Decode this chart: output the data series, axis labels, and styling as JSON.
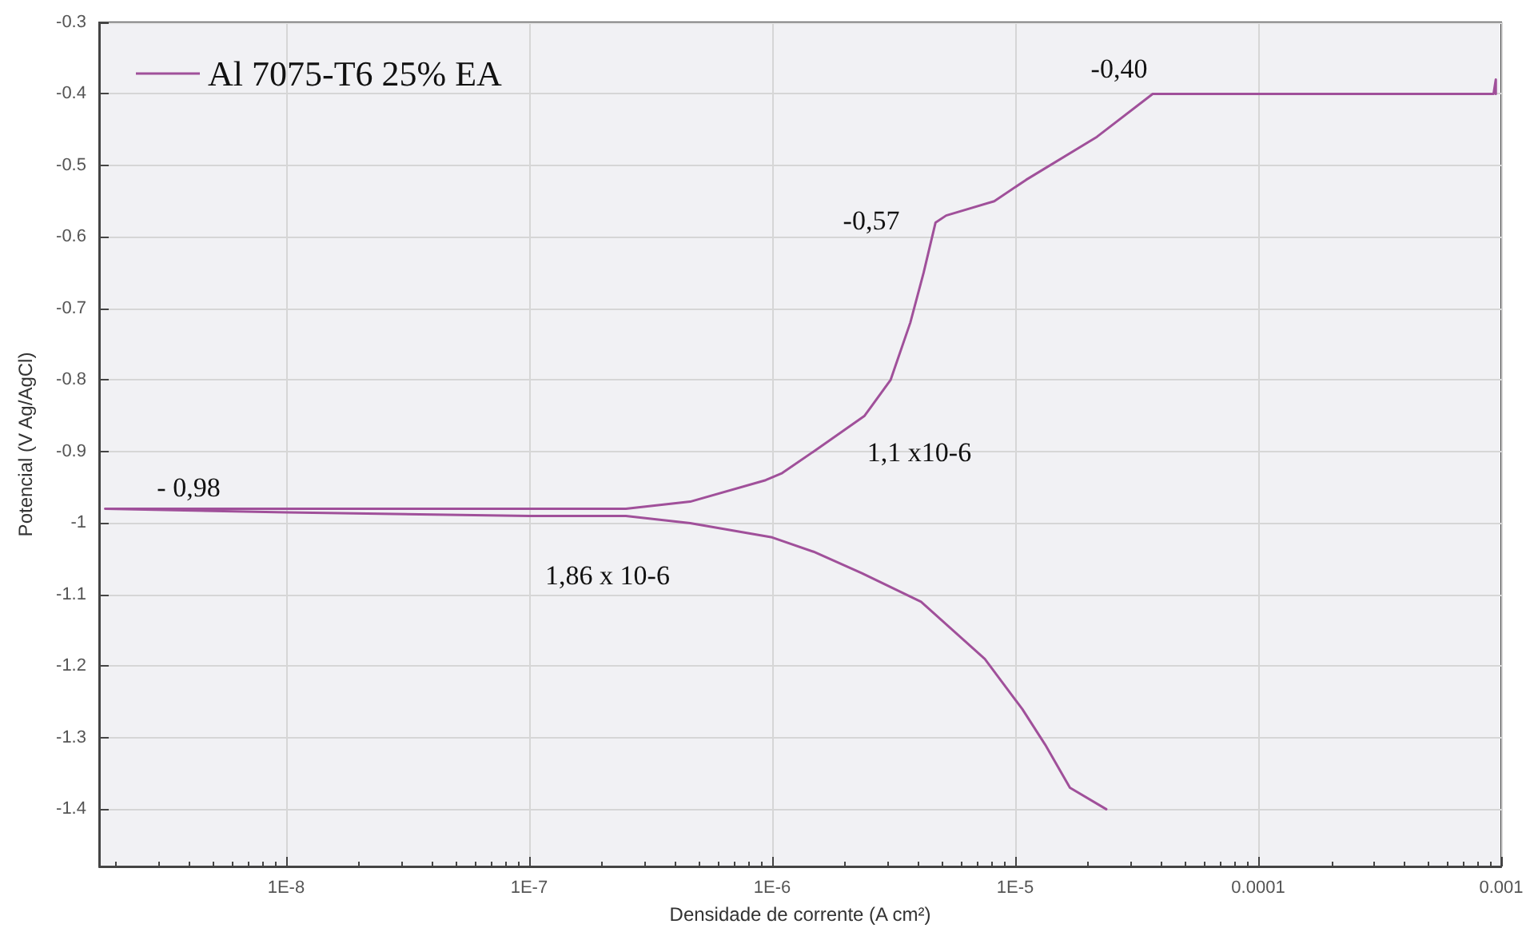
{
  "chart_data": {
    "type": "line",
    "xlabel": "Densidade de corrente (A cm²)",
    "ylabel": "Potencial (V Ag/AgCl)",
    "log": "x",
    "grid": true,
    "legend": "top left",
    "marker": "none",
    "line_style": "solid",
    "xlim": [
      1.7e-09,
      0.001
    ],
    "ylim": [
      -1.48,
      -0.3
    ],
    "xticks": [
      {
        "value": 1e-08,
        "label": "1E-8"
      },
      {
        "value": 1e-07,
        "label": "1E-7"
      },
      {
        "value": 1e-06,
        "label": "1E-6"
      },
      {
        "value": 1e-05,
        "label": "1E-5"
      },
      {
        "value": 0.0001,
        "label": "0.0001"
      },
      {
        "value": 0.001,
        "label": "0.001"
      }
    ],
    "yticks": [
      {
        "value": -0.3,
        "label": "-0.3"
      },
      {
        "value": -0.4,
        "label": "-0.4"
      },
      {
        "value": -0.5,
        "label": "-0.5"
      },
      {
        "value": -0.6,
        "label": "-0.6"
      },
      {
        "value": -0.7,
        "label": "-0.7"
      },
      {
        "value": -0.8,
        "label": "-0.8"
      },
      {
        "value": -0.9,
        "label": "-0.9"
      },
      {
        "value": -1,
        "label": "-1"
      },
      {
        "value": -1.1,
        "label": "-1.1"
      },
      {
        "value": -1.2,
        "label": "-1.2"
      },
      {
        "value": -1.3,
        "label": "-1.3"
      },
      {
        "value": -1.4,
        "label": "-1.4"
      }
    ],
    "series": [
      {
        "name": "Al 7075-T6 25% EA",
        "color": "#a0509a",
        "x": [
          2.37e-05,
          1.68e-05,
          1.33e-05,
          1.07e-05,
          7.5e-06,
          4.1e-06,
          2.34e-06,
          1.48e-06,
          1e-06,
          4.6e-07,
          2.5e-07,
          1e-07,
          1e-08,
          1.8e-09,
          1e-08,
          1e-07,
          2.5e-07,
          4.6e-07,
          9.4e-07,
          1.1e-06,
          1.48e-06,
          2.4e-06,
          3.07e-06,
          3.7e-06,
          4.2e-06,
          4.7e-06,
          5.2e-06,
          8.2e-06,
          1.11e-05,
          2.17e-05,
          3.68e-05,
          0.0001,
          0.00093,
          0.00095,
          0.00095
        ],
        "values": [
          -1.4,
          -1.37,
          -1.31,
          -1.26,
          -1.19,
          -1.11,
          -1.07,
          -1.04,
          -1.02,
          -1,
          -0.99,
          -0.99,
          -0.985,
          -0.98,
          -0.98,
          -0.98,
          -0.98,
          -0.97,
          -0.94,
          -0.93,
          -0.9,
          -0.85,
          -0.8,
          -0.72,
          -0.65,
          -0.58,
          -0.57,
          -0.55,
          -0.52,
          -0.46,
          -0.4,
          -0.4,
          -0.4,
          -0.38,
          -0.4
        ]
      }
    ],
    "annotations": [
      "- 0,98",
      "1,86 x 10-6",
      "1,1 x10-6",
      "-0,57",
      "-0,40"
    ]
  }
}
